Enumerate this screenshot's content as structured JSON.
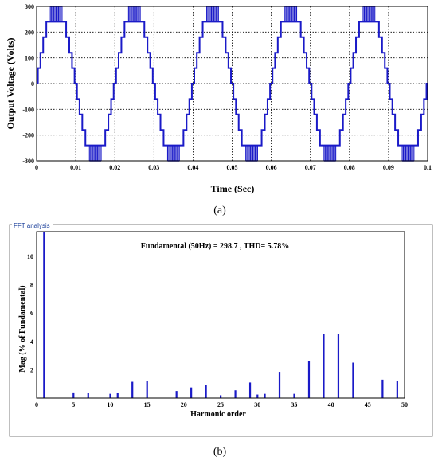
{
  "panel_a": {
    "label": "(a)"
  },
  "panel_b": {
    "label": "(b)",
    "frame_title": "FFT analysis",
    "fundamental_text": "Fundamental (50Hz) = 298.7 , THD= 5.78%"
  },
  "chart_data": [
    {
      "type": "line",
      "title": "",
      "xlabel": "Time (Sec)",
      "ylabel": "Output Voltage (Volts)",
      "xlim": [
        0,
        0.1
      ],
      "ylim": [
        -300,
        300
      ],
      "x_ticks": [
        "0",
        "0.01",
        "0.02",
        "0.03",
        "0.04",
        "0.05",
        "0.06",
        "0.07",
        "0.08",
        "0.09",
        "0.1"
      ],
      "y_ticks": [
        "300",
        "200",
        "100",
        "0",
        "-100",
        "-200",
        "-300"
      ],
      "grid": true,
      "color": "#1a1ac8",
      "waveform": "multilevel staircase, 5 cycles of 50 Hz, levels of about 60 V, PWM switching near the peaks",
      "frequency_hz": 50,
      "peak": 300
    },
    {
      "type": "bar",
      "title": "",
      "xlabel": "Harmonic order",
      "ylabel": "Mag (% of Fundamental)",
      "xlim": [
        0,
        50
      ],
      "ylim": [
        0,
        10
      ],
      "x_ticks": [
        "0",
        "5",
        "10",
        "15",
        "20",
        "25",
        "30",
        "35",
        "40",
        "45",
        "50"
      ],
      "y_ticks": [
        "10",
        "8",
        "6",
        "4",
        "2",
        "0"
      ],
      "grid": false,
      "color": "#1a1ac8",
      "harmonics": [
        {
          "order": 1,
          "value": 100
        },
        {
          "order": 5,
          "value": 0.4
        },
        {
          "order": 7,
          "value": 0.35
        },
        {
          "order": 10,
          "value": 0.3
        },
        {
          "order": 11,
          "value": 0.35
        },
        {
          "order": 13,
          "value": 1.15
        },
        {
          "order": 15,
          "value": 1.2
        },
        {
          "order": 19,
          "value": 0.5
        },
        {
          "order": 21,
          "value": 0.75
        },
        {
          "order": 23,
          "value": 0.95
        },
        {
          "order": 25,
          "value": 0.2
        },
        {
          "order": 27,
          "value": 0.55
        },
        {
          "order": 29,
          "value": 1.1
        },
        {
          "order": 30,
          "value": 0.25
        },
        {
          "order": 31,
          "value": 0.3
        },
        {
          "order": 33,
          "value": 1.85
        },
        {
          "order": 35,
          "value": 0.3
        },
        {
          "order": 37,
          "value": 2.6
        },
        {
          "order": 39,
          "value": 4.5
        },
        {
          "order": 41,
          "value": 4.5
        },
        {
          "order": 43,
          "value": 2.5
        },
        {
          "order": 47,
          "value": 1.3
        },
        {
          "order": 49,
          "value": 1.2
        }
      ]
    }
  ]
}
